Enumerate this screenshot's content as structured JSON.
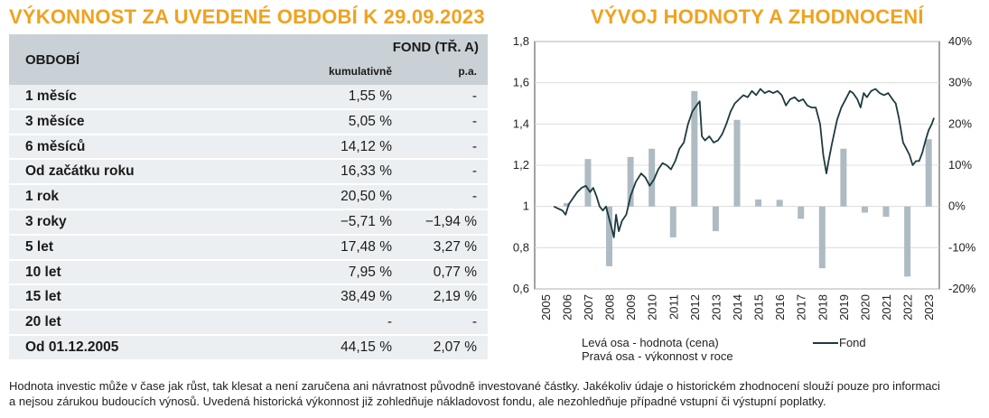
{
  "left_title": "VÝKONNOST ZA UVEDENÉ OBDOBÍ K 29.09.2023",
  "right_title": "VÝVOJ HODNOTY A ZHODNOCENÍ",
  "table": {
    "col_period": "OBDOBÍ",
    "col_fund": "FOND (TŘ. A)",
    "col_cumulative": "kumulativně",
    "col_pa": "p.a.",
    "rows": [
      {
        "label": "1 měsíc",
        "cum": "1,55 %",
        "pa": "-"
      },
      {
        "label": "3 měsíce",
        "cum": "5,05 %",
        "pa": "-"
      },
      {
        "label": "6 měsíců",
        "cum": "14,12 %",
        "pa": "-"
      },
      {
        "label": "Od začátku roku",
        "cum": "16,33 %",
        "pa": "-"
      },
      {
        "label": "1 rok",
        "cum": "20,50 %",
        "pa": "-"
      },
      {
        "label": "3 roky",
        "cum": "−5,71 %",
        "pa": "−1,94 %"
      },
      {
        "label": "5 let",
        "cum": "17,48 %",
        "pa": "3,27 %"
      },
      {
        "label": "10 let",
        "cum": "7,95 %",
        "pa": "0,77 %"
      },
      {
        "label": "15 let",
        "cum": "38,49 %",
        "pa": "2,19 %"
      },
      {
        "label": "20 let",
        "cum": "-",
        "pa": "-"
      },
      {
        "label": "Od 01.12.2005",
        "cum": "44,15 %",
        "pa": "2,07 %"
      }
    ]
  },
  "chart_data": {
    "type": "line",
    "left_ylim": [
      0.6,
      1.8
    ],
    "left_ticks": [
      "0,6",
      "0,8",
      "1",
      "1,2",
      "1,4",
      "1,6",
      "1,8"
    ],
    "right_ylim": [
      -20,
      40
    ],
    "right_ticks": [
      "-20%",
      "-10%",
      "0%",
      "10%",
      "20%",
      "30%",
      "40%"
    ],
    "x_labels": [
      "2005",
      "2006",
      "2007",
      "2008",
      "2009",
      "2010",
      "2011",
      "2012",
      "2013",
      "2014",
      "2015",
      "2016",
      "2017",
      "2018",
      "2019",
      "2020",
      "2021",
      "2022",
      "2023"
    ],
    "legend_left": "Levá osa - hodnota (cena)",
    "legend_right": "Pravá osa - výkonnost v roce",
    "legend_fund": "Fond",
    "line_color": "#1d3a3f",
    "bar_color": "#aebbc2",
    "annual_returns": [
      {
        "year": 2006,
        "value": 0.8
      },
      {
        "year": 2007,
        "value": 11.5
      },
      {
        "year": 2008,
        "value": -14.5
      },
      {
        "year": 2009,
        "value": 12.0
      },
      {
        "year": 2010,
        "value": 14.0
      },
      {
        "year": 2011,
        "value": -7.5
      },
      {
        "year": 2012,
        "value": 28.0
      },
      {
        "year": 2013,
        "value": -6.0
      },
      {
        "year": 2014,
        "value": 21.0
      },
      {
        "year": 2015,
        "value": 1.7
      },
      {
        "year": 2016,
        "value": 1.6
      },
      {
        "year": 2017,
        "value": -3.0
      },
      {
        "year": 2018,
        "value": -15.0
      },
      {
        "year": 2019,
        "value": 14.0
      },
      {
        "year": 2020,
        "value": -1.5
      },
      {
        "year": 2021,
        "value": -2.5
      },
      {
        "year": 2022,
        "value": -17.0
      },
      {
        "year": 2023,
        "value": 16.3
      }
    ],
    "fund_value": [
      [
        2005.9,
        1.0
      ],
      [
        2006.1,
        0.99
      ],
      [
        2006.3,
        0.98
      ],
      [
        2006.45,
        0.96
      ],
      [
        2006.6,
        1.01
      ],
      [
        2006.8,
        1.04
      ],
      [
        2007.0,
        1.07
      ],
      [
        2007.2,
        1.09
      ],
      [
        2007.4,
        1.1
      ],
      [
        2007.6,
        1.07
      ],
      [
        2007.75,
        1.09
      ],
      [
        2007.9,
        1.05
      ],
      [
        2008.05,
        1.0
      ],
      [
        2008.2,
        0.98
      ],
      [
        2008.35,
        1.0
      ],
      [
        2008.5,
        0.94
      ],
      [
        2008.6,
        0.9
      ],
      [
        2008.72,
        0.85
      ],
      [
        2008.82,
        0.96
      ],
      [
        2008.95,
        0.88
      ],
      [
        2009.1,
        0.93
      ],
      [
        2009.3,
        0.96
      ],
      [
        2009.5,
        1.05
      ],
      [
        2009.75,
        1.12
      ],
      [
        2010.0,
        1.16
      ],
      [
        2010.2,
        1.14
      ],
      [
        2010.4,
        1.1
      ],
      [
        2010.6,
        1.13
      ],
      [
        2010.8,
        1.18
      ],
      [
        2011.0,
        1.21
      ],
      [
        2011.2,
        1.2
      ],
      [
        2011.4,
        1.18
      ],
      [
        2011.6,
        1.22
      ],
      [
        2011.8,
        1.28
      ],
      [
        2012.0,
        1.31
      ],
      [
        2012.2,
        1.4
      ],
      [
        2012.4,
        1.46
      ],
      [
        2012.6,
        1.49
      ],
      [
        2012.75,
        1.51
      ],
      [
        2012.85,
        1.34
      ],
      [
        2013.0,
        1.32
      ],
      [
        2013.2,
        1.34
      ],
      [
        2013.4,
        1.31
      ],
      [
        2013.6,
        1.32
      ],
      [
        2013.8,
        1.35
      ],
      [
        2014.0,
        1.4
      ],
      [
        2014.2,
        1.46
      ],
      [
        2014.4,
        1.5
      ],
      [
        2014.6,
        1.52
      ],
      [
        2014.8,
        1.54
      ],
      [
        2015.0,
        1.53
      ],
      [
        2015.2,
        1.56
      ],
      [
        2015.4,
        1.54
      ],
      [
        2015.6,
        1.57
      ],
      [
        2015.8,
        1.55
      ],
      [
        2016.0,
        1.56
      ],
      [
        2016.2,
        1.55
      ],
      [
        2016.4,
        1.56
      ],
      [
        2016.6,
        1.54
      ],
      [
        2016.8,
        1.49
      ],
      [
        2017.0,
        1.52
      ],
      [
        2017.2,
        1.53
      ],
      [
        2017.4,
        1.51
      ],
      [
        2017.6,
        1.52
      ],
      [
        2017.8,
        1.49
      ],
      [
        2018.0,
        1.48
      ],
      [
        2018.2,
        1.48
      ],
      [
        2018.4,
        1.4
      ],
      [
        2018.55,
        1.25
      ],
      [
        2018.7,
        1.16
      ],
      [
        2018.8,
        1.22
      ],
      [
        2018.95,
        1.3
      ],
      [
        2019.2,
        1.42
      ],
      [
        2019.4,
        1.48
      ],
      [
        2019.6,
        1.52
      ],
      [
        2019.8,
        1.56
      ],
      [
        2019.95,
        1.55
      ],
      [
        2020.15,
        1.52
      ],
      [
        2020.3,
        1.48
      ],
      [
        2020.45,
        1.55
      ],
      [
        2020.6,
        1.53
      ],
      [
        2020.8,
        1.56
      ],
      [
        2021.0,
        1.57
      ],
      [
        2021.2,
        1.55
      ],
      [
        2021.4,
        1.54
      ],
      [
        2021.6,
        1.55
      ],
      [
        2021.8,
        1.52
      ],
      [
        2021.95,
        1.5
      ],
      [
        2022.1,
        1.43
      ],
      [
        2022.3,
        1.31
      ],
      [
        2022.45,
        1.28
      ],
      [
        2022.6,
        1.25
      ],
      [
        2022.75,
        1.2
      ],
      [
        2022.9,
        1.22
      ],
      [
        2023.05,
        1.22
      ],
      [
        2023.2,
        1.26
      ],
      [
        2023.35,
        1.32
      ],
      [
        2023.5,
        1.37
      ],
      [
        2023.65,
        1.4
      ],
      [
        2023.75,
        1.43
      ]
    ]
  },
  "disclaimer_line1": "Hodnota investic může v čase jak růst, tak klesat a není zaručena ani návratnost původně investované částky. Jakékoliv údaje o historickém zhodnocení slouží pouze pro informaci",
  "disclaimer_line2": "a nejsou zárukou budoucích výnosů. Uvedená historická výkonnost již zohledňuje nákladovost fondu, ale nezohledňuje případné vstupní či výstupní poplatky."
}
